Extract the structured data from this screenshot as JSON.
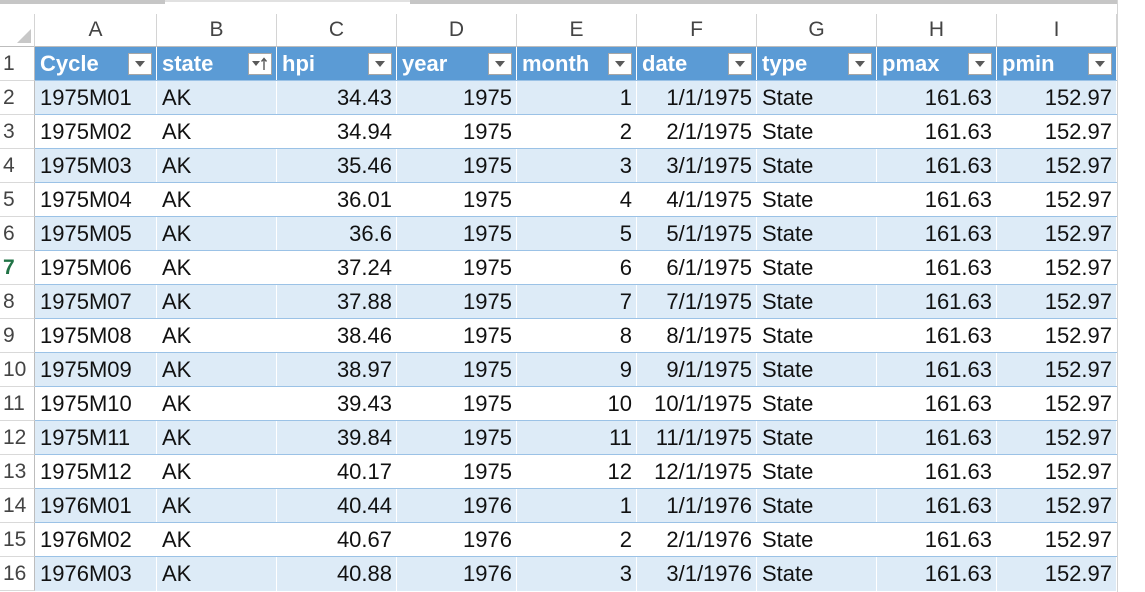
{
  "columns": [
    "A",
    "B",
    "C",
    "D",
    "E",
    "F",
    "G",
    "H",
    "I"
  ],
  "headers": [
    "Cycle",
    "state",
    "hpi",
    "year",
    "month",
    "date",
    "type",
    "pmax",
    "pmin"
  ],
  "row_numbers": [
    "1",
    "2",
    "3",
    "4",
    "5",
    "6",
    "7",
    "8",
    "9",
    "10",
    "11",
    "12",
    "13",
    "14",
    "15",
    "16"
  ],
  "active_row": "7",
  "rows": [
    [
      "1975M01",
      "AK",
      "34.43",
      "1975",
      "1",
      "1/1/1975",
      "State",
      "161.63",
      "152.97"
    ],
    [
      "1975M02",
      "AK",
      "34.94",
      "1975",
      "2",
      "2/1/1975",
      "State",
      "161.63",
      "152.97"
    ],
    [
      "1975M03",
      "AK",
      "35.46",
      "1975",
      "3",
      "3/1/1975",
      "State",
      "161.63",
      "152.97"
    ],
    [
      "1975M04",
      "AK",
      "36.01",
      "1975",
      "4",
      "4/1/1975",
      "State",
      "161.63",
      "152.97"
    ],
    [
      "1975M05",
      "AK",
      "36.6",
      "1975",
      "5",
      "5/1/1975",
      "State",
      "161.63",
      "152.97"
    ],
    [
      "1975M06",
      "AK",
      "37.24",
      "1975",
      "6",
      "6/1/1975",
      "State",
      "161.63",
      "152.97"
    ],
    [
      "1975M07",
      "AK",
      "37.88",
      "1975",
      "7",
      "7/1/1975",
      "State",
      "161.63",
      "152.97"
    ],
    [
      "1975M08",
      "AK",
      "38.46",
      "1975",
      "8",
      "8/1/1975",
      "State",
      "161.63",
      "152.97"
    ],
    [
      "1975M09",
      "AK",
      "38.97",
      "1975",
      "9",
      "9/1/1975",
      "State",
      "161.63",
      "152.97"
    ],
    [
      "1975M10",
      "AK",
      "39.43",
      "1975",
      "10",
      "10/1/1975",
      "State",
      "161.63",
      "152.97"
    ],
    [
      "1975M11",
      "AK",
      "39.84",
      "1975",
      "11",
      "11/1/1975",
      "State",
      "161.63",
      "152.97"
    ],
    [
      "1975M12",
      "AK",
      "40.17",
      "1975",
      "12",
      "12/1/1975",
      "State",
      "161.63",
      "152.97"
    ],
    [
      "1976M01",
      "AK",
      "40.44",
      "1976",
      "1",
      "1/1/1976",
      "State",
      "161.63",
      "152.97"
    ],
    [
      "1976M02",
      "AK",
      "40.67",
      "1976",
      "2",
      "2/1/1976",
      "State",
      "161.63",
      "152.97"
    ],
    [
      "1976M03",
      "AK",
      "40.88",
      "1976",
      "3",
      "3/1/1976",
      "State",
      "161.63",
      "152.97"
    ]
  ],
  "align": [
    "left",
    "left",
    "right",
    "right",
    "right",
    "right",
    "left",
    "right",
    "right"
  ],
  "sorted_column": "state",
  "colors": {
    "header_bg": "#5b9bd5",
    "band_bg": "#ddebf7",
    "active_row_text": "#217346"
  },
  "icons": {
    "filter": "filter-dropdown-icon",
    "sorted": "sort-ascending-filter-icon"
  }
}
